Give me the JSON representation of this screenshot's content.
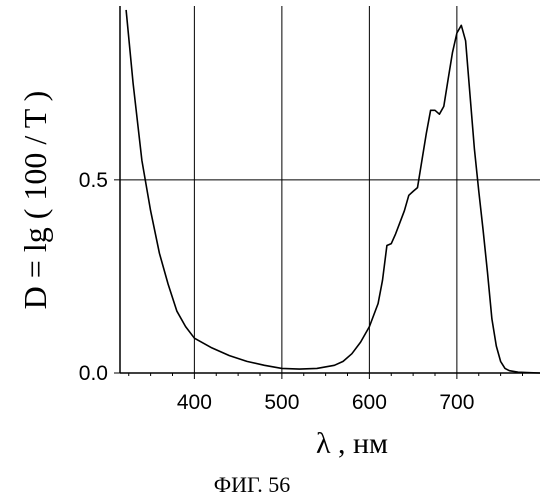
{
  "chart_data": {
    "type": "line",
    "title": "",
    "ylabel": "D = lg ( 100 / T )",
    "xlabel": "λ , нм",
    "caption": "ФИГ. 56",
    "xlim": [
      315,
      795
    ],
    "ylim": [
      0.0,
      0.95
    ],
    "xticks": [
      400,
      500,
      600,
      700
    ],
    "yticks": [
      0.0,
      0.5
    ],
    "ytick_labels": [
      "0.0",
      "0.5"
    ],
    "xtick_labels": [
      "400",
      "500",
      "600",
      "700"
    ],
    "grid": true,
    "series": [
      {
        "name": "",
        "x": [
          322,
          330,
          340,
          350,
          360,
          370,
          380,
          390,
          400,
          420,
          440,
          460,
          480,
          500,
          520,
          540,
          560,
          570,
          580,
          590,
          600,
          610,
          615,
          620,
          625,
          630,
          635,
          640,
          645,
          650,
          655,
          660,
          665,
          670,
          675,
          680,
          685,
          690,
          695,
          700,
          705,
          710,
          715,
          720,
          725,
          730,
          735,
          740,
          745,
          750,
          755,
          760,
          770,
          780,
          795
        ],
        "y": [
          0.94,
          0.75,
          0.55,
          0.42,
          0.31,
          0.23,
          0.16,
          0.12,
          0.09,
          0.065,
          0.045,
          0.03,
          0.02,
          0.012,
          0.01,
          0.012,
          0.02,
          0.03,
          0.05,
          0.08,
          0.12,
          0.18,
          0.24,
          0.33,
          0.335,
          0.36,
          0.39,
          0.42,
          0.46,
          0.47,
          0.48,
          0.55,
          0.62,
          0.68,
          0.68,
          0.67,
          0.69,
          0.76,
          0.83,
          0.88,
          0.9,
          0.86,
          0.72,
          0.58,
          0.47,
          0.37,
          0.26,
          0.14,
          0.07,
          0.03,
          0.012,
          0.006,
          0.002,
          0.001,
          0.0
        ]
      }
    ]
  }
}
